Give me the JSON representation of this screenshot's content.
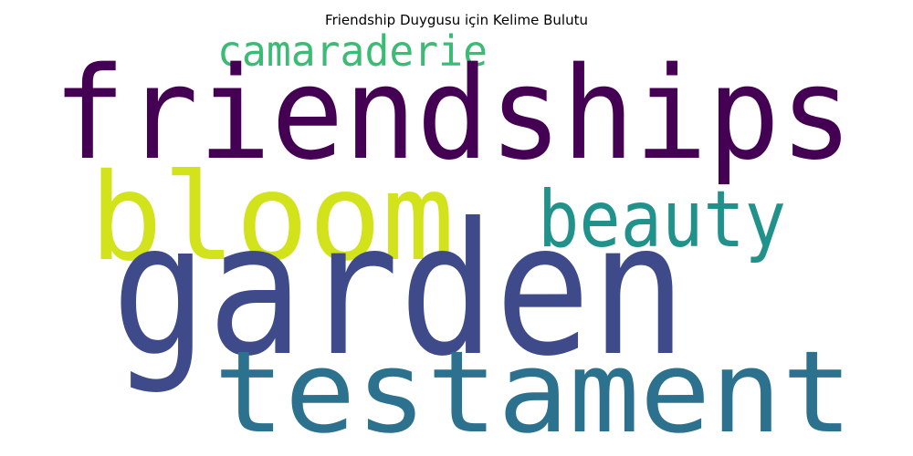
{
  "title": "Friendship Duygusu için Kelime Bulutu",
  "words": [
    {
      "text": "camaraderie",
      "color": "#3cbb75"
    },
    {
      "text": "friendships",
      "color": "#440154"
    },
    {
      "text": "bloom",
      "color": "#d2e21b"
    },
    {
      "text": "beauty",
      "color": "#21918c"
    },
    {
      "text": "garden",
      "color": "#3e4a89"
    },
    {
      "text": "testament",
      "color": "#2c728e"
    }
  ]
}
